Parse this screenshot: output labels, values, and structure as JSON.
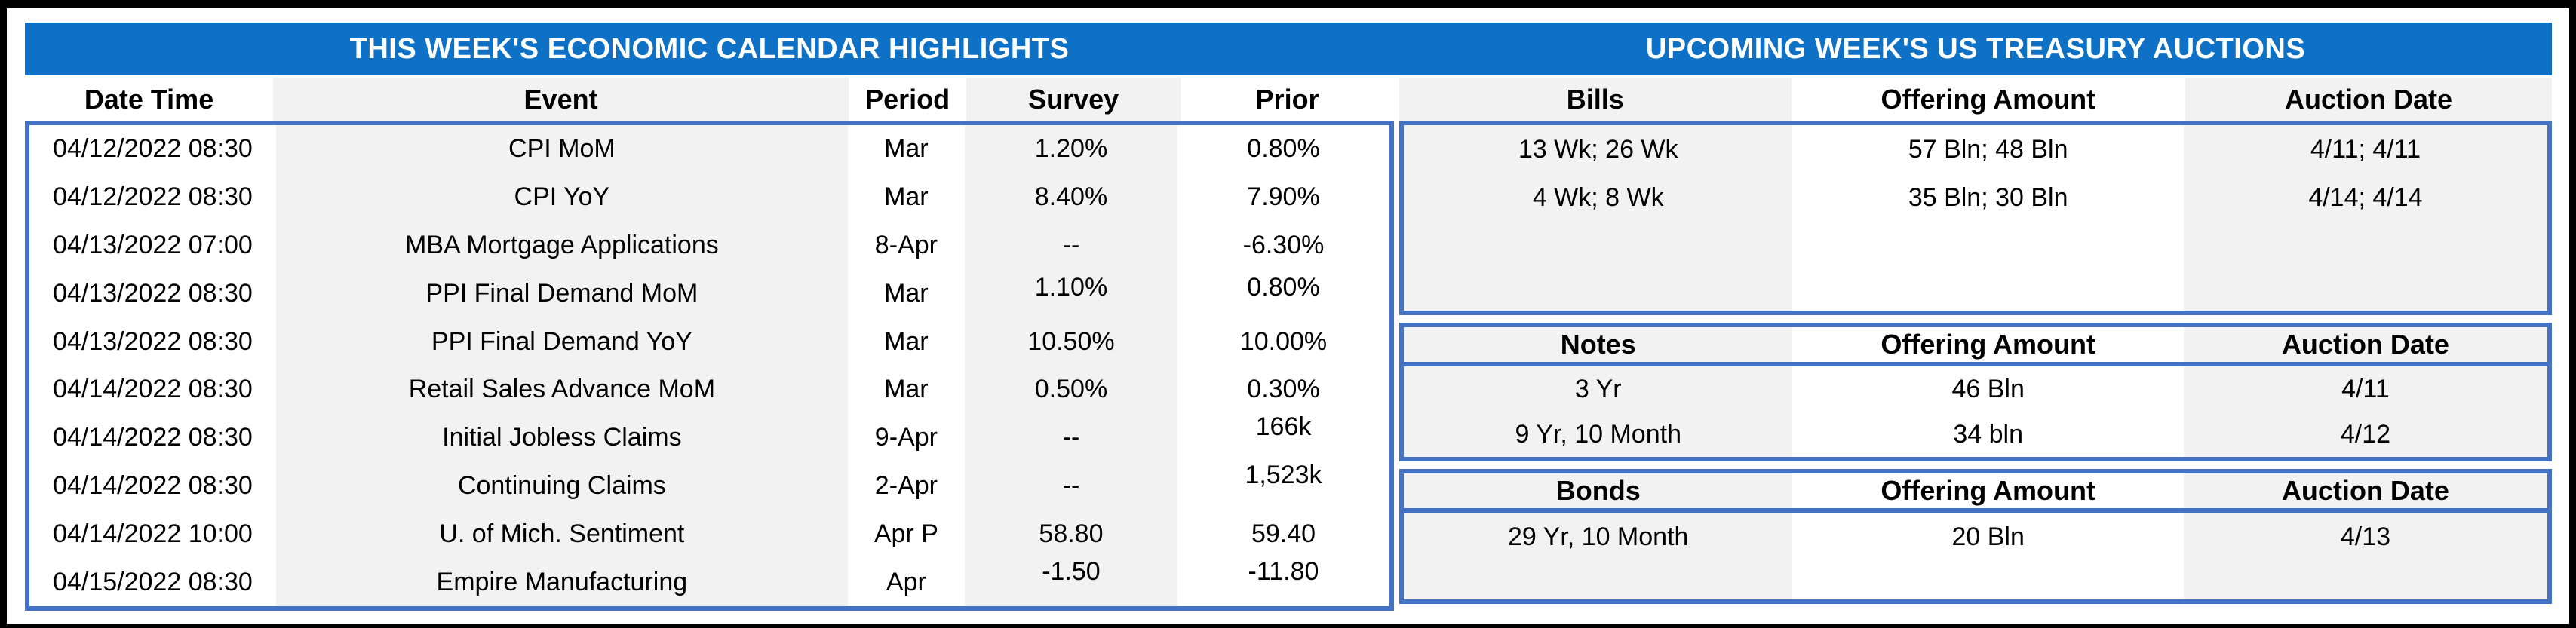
{
  "colors": {
    "banner_blue": "#0e71c5",
    "box_border_blue": "#4472c4",
    "stripe_gray": "#f2f2f2",
    "banner_text": "#ffffff",
    "body_text": "#000000"
  },
  "left_table": {
    "title": "THIS WEEK'S ECONOMIC CALENDAR HIGHLIGHTS",
    "columns": [
      "Date Time",
      "Event",
      "Period",
      "Survey",
      "Prior"
    ],
    "rows": [
      {
        "date_time": "04/12/2022 08:30",
        "event": "CPI MoM",
        "period": "Mar",
        "survey": "1.20%",
        "prior": "0.80%"
      },
      {
        "date_time": "04/12/2022 08:30",
        "event": "CPI YoY",
        "period": "Mar",
        "survey": "8.40%",
        "prior": "7.90%"
      },
      {
        "date_time": "04/13/2022 07:00",
        "event": "MBA Mortgage Applications",
        "period": "8-Apr",
        "survey": "--",
        "prior": "-6.30%"
      },
      {
        "date_time": "04/13/2022 08:30",
        "event": "PPI Final Demand MoM",
        "period": "Mar",
        "survey": "1.10%",
        "prior": "0.80%"
      },
      {
        "date_time": "04/13/2022 08:30",
        "event": "PPI Final Demand YoY",
        "period": "Mar",
        "survey": "10.50%",
        "prior": "10.00%"
      },
      {
        "date_time": "04/14/2022 08:30",
        "event": "Retail Sales Advance MoM",
        "period": "Mar",
        "survey": "0.50%",
        "prior": "0.30%"
      },
      {
        "date_time": "04/14/2022 08:30",
        "event": "Initial Jobless Claims",
        "period": "9-Apr",
        "survey": "--",
        "prior": "166k"
      },
      {
        "date_time": "04/14/2022 08:30",
        "event": "Continuing Claims",
        "period": "2-Apr",
        "survey": "--",
        "prior": "1,523k"
      },
      {
        "date_time": "04/14/2022 10:00",
        "event": "U. of Mich. Sentiment",
        "period": "Apr P",
        "survey": "58.80",
        "prior": "59.40"
      },
      {
        "date_time": "04/15/2022 08:30",
        "event": "Empire Manufacturing",
        "period": "Apr",
        "survey": "-1.50",
        "prior": "-11.80"
      }
    ]
  },
  "right_table": {
    "title": "UPCOMING WEEK'S US TREASURY AUCTIONS",
    "sections": [
      {
        "name": "Bills",
        "columns": [
          "Bills",
          "Offering Amount",
          "Auction Date"
        ],
        "rows": [
          {
            "security": "13 Wk; 26 Wk",
            "offering_amount": "57 Bln; 48 Bln",
            "auction_date": "4/11; 4/11"
          },
          {
            "security": "4 Wk; 8 Wk",
            "offering_amount": "35 Bln; 30 Bln",
            "auction_date": "4/14; 4/14"
          }
        ]
      },
      {
        "name": "Notes",
        "columns": [
          "Notes",
          "Offering Amount",
          "Auction Date"
        ],
        "rows": [
          {
            "security": "3 Yr",
            "offering_amount": "46 Bln",
            "auction_date": "4/11"
          },
          {
            "security": "9 Yr, 10 Month",
            "offering_amount": "34 bln",
            "auction_date": "4/12"
          }
        ]
      },
      {
        "name": "Bonds",
        "columns": [
          "Bonds",
          "Offering Amount",
          "Auction Date"
        ],
        "rows": [
          {
            "security": "29 Yr, 10 Month",
            "offering_amount": "20 Bln",
            "auction_date": "4/13"
          }
        ]
      }
    ]
  }
}
